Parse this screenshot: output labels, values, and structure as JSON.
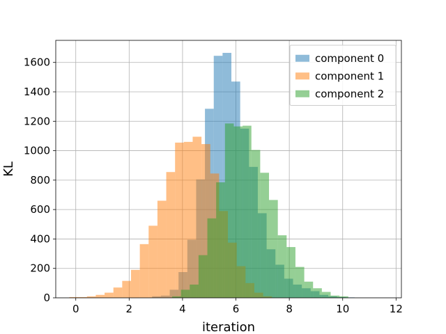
{
  "chart_data": {
    "type": "bar",
    "title": "",
    "xlabel": "iteration",
    "ylabel": "KL",
    "xlim": [
      -0.75,
      12.2
    ],
    "ylim": [
      0,
      1750
    ],
    "xticks": [
      0,
      2,
      4,
      6,
      8,
      10,
      12
    ],
    "yticks": [
      0,
      200,
      400,
      600,
      800,
      1000,
      1200,
      1400,
      1600
    ],
    "grid": true,
    "legend": "top-right",
    "bin_width": 0.33,
    "series": [
      {
        "name": "component 0",
        "color": "#1f77b4",
        "alpha": 0.5,
        "bins": [
          {
            "x": 2.86,
            "count": 10
          },
          {
            "x": 3.19,
            "count": 15
          },
          {
            "x": 3.52,
            "count": 55
          },
          {
            "x": 3.85,
            "count": 175
          },
          {
            "x": 4.18,
            "count": 395
          },
          {
            "x": 4.51,
            "count": 805
          },
          {
            "x": 4.84,
            "count": 1285
          },
          {
            "x": 5.17,
            "count": 1645
          },
          {
            "x": 5.5,
            "count": 1665
          },
          {
            "x": 5.83,
            "count": 1470
          },
          {
            "x": 6.16,
            "count": 1150
          },
          {
            "x": 6.49,
            "count": 890
          },
          {
            "x": 6.82,
            "count": 575
          },
          {
            "x": 7.15,
            "count": 330
          },
          {
            "x": 7.48,
            "count": 225
          },
          {
            "x": 7.81,
            "count": 130
          },
          {
            "x": 8.14,
            "count": 90
          },
          {
            "x": 8.47,
            "count": 65
          },
          {
            "x": 8.8,
            "count": 45
          },
          {
            "x": 9.13,
            "count": 20
          },
          {
            "x": 9.46,
            "count": 10
          },
          {
            "x": 9.79,
            "count": 5
          },
          {
            "x": 10.12,
            "count": 3
          }
        ]
      },
      {
        "name": "component 1",
        "color": "#ff7f0e",
        "alpha": 0.5,
        "bins": [
          {
            "x": -0.24,
            "count": 5
          },
          {
            "x": 0.09,
            "count": 5
          },
          {
            "x": 0.42,
            "count": 10
          },
          {
            "x": 0.75,
            "count": 20
          },
          {
            "x": 1.08,
            "count": 35
          },
          {
            "x": 1.41,
            "count": 70
          },
          {
            "x": 1.74,
            "count": 115
          },
          {
            "x": 2.07,
            "count": 190
          },
          {
            "x": 2.4,
            "count": 365
          },
          {
            "x": 2.73,
            "count": 490
          },
          {
            "x": 3.06,
            "count": 660
          },
          {
            "x": 3.39,
            "count": 855
          },
          {
            "x": 3.72,
            "count": 1055
          },
          {
            "x": 4.05,
            "count": 1060
          },
          {
            "x": 4.38,
            "count": 1095
          },
          {
            "x": 4.71,
            "count": 1045
          },
          {
            "x": 5.04,
            "count": 845
          },
          {
            "x": 5.37,
            "count": 590
          },
          {
            "x": 5.7,
            "count": 375
          },
          {
            "x": 6.03,
            "count": 215
          },
          {
            "x": 6.36,
            "count": 100
          },
          {
            "x": 6.69,
            "count": 35
          },
          {
            "x": 7.02,
            "count": 10
          }
        ]
      },
      {
        "name": "component 2",
        "color": "#2ca02c",
        "alpha": 0.5,
        "bins": [
          {
            "x": 3.61,
            "count": 10
          },
          {
            "x": 3.94,
            "count": 55
          },
          {
            "x": 4.27,
            "count": 90
          },
          {
            "x": 4.6,
            "count": 290
          },
          {
            "x": 4.93,
            "count": 540
          },
          {
            "x": 5.26,
            "count": 785
          },
          {
            "x": 5.59,
            "count": 1185
          },
          {
            "x": 5.92,
            "count": 1165
          },
          {
            "x": 6.25,
            "count": 1170
          },
          {
            "x": 6.58,
            "count": 1005
          },
          {
            "x": 6.91,
            "count": 850
          },
          {
            "x": 7.24,
            "count": 665
          },
          {
            "x": 7.57,
            "count": 425
          },
          {
            "x": 7.9,
            "count": 345
          },
          {
            "x": 8.23,
            "count": 210
          },
          {
            "x": 8.56,
            "count": 110
          },
          {
            "x": 8.89,
            "count": 65
          },
          {
            "x": 9.22,
            "count": 40
          },
          {
            "x": 9.55,
            "count": 15
          },
          {
            "x": 9.88,
            "count": 10
          }
        ]
      }
    ]
  }
}
